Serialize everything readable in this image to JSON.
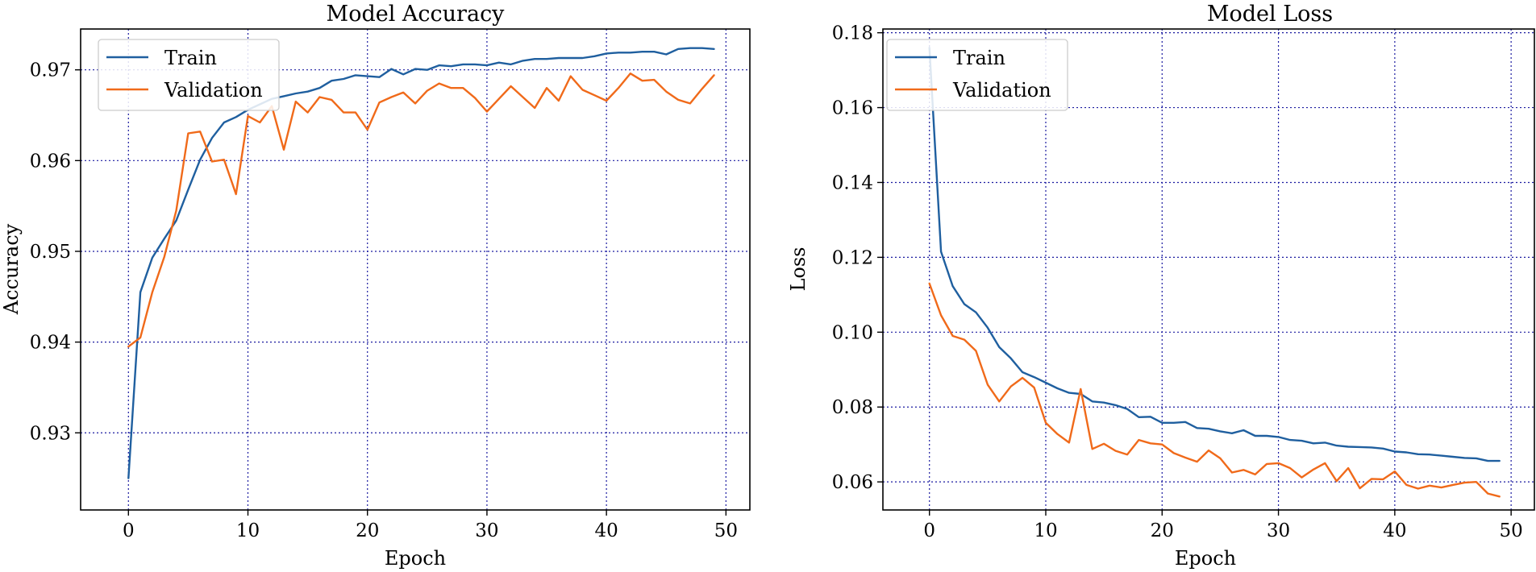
{
  "chart_data": [
    {
      "type": "line",
      "title": "Model Accuracy",
      "xlabel": "Epoch",
      "ylabel": "Accuracy",
      "xlim": [
        -4,
        52
      ],
      "ylim": [
        0.9215,
        0.9745
      ],
      "xticks": [
        0,
        10,
        20,
        30,
        40,
        50
      ],
      "yticks": [
        0.93,
        0.94,
        0.95,
        0.96,
        0.97
      ],
      "ytick_labels": [
        "0.93",
        "0.94",
        "0.95",
        "0.96",
        "0.97"
      ],
      "grid": true,
      "legend_position": "upper-left",
      "x": [
        0,
        1,
        2,
        3,
        4,
        5,
        6,
        7,
        8,
        9,
        10,
        11,
        12,
        13,
        14,
        15,
        16,
        17,
        18,
        19,
        20,
        21,
        22,
        23,
        24,
        25,
        26,
        27,
        28,
        29,
        30,
        31,
        32,
        33,
        34,
        35,
        36,
        37,
        38,
        39,
        40,
        41,
        42,
        43,
        44,
        45,
        46,
        47,
        48,
        49
      ],
      "series": [
        {
          "name": "Train",
          "color": "#1f5f9f",
          "values": [
            0.925,
            0.9455,
            0.9493,
            0.9514,
            0.9534,
            0.9568,
            0.9601,
            0.9625,
            0.9642,
            0.9648,
            0.9656,
            0.9662,
            0.9668,
            0.9671,
            0.9674,
            0.9676,
            0.968,
            0.9688,
            0.969,
            0.9694,
            0.9693,
            0.9692,
            0.9701,
            0.9695,
            0.9701,
            0.97,
            0.9705,
            0.9704,
            0.9706,
            0.9706,
            0.9705,
            0.9708,
            0.9706,
            0.971,
            0.9712,
            0.9712,
            0.9713,
            0.9713,
            0.9713,
            0.9715,
            0.9718,
            0.9719,
            0.9719,
            0.972,
            0.972,
            0.9717,
            0.9723,
            0.9724,
            0.9724,
            0.9723
          ]
        },
        {
          "name": "Validation",
          "color": "#f06a1a",
          "values": [
            0.9395,
            0.9405,
            0.9455,
            0.9494,
            0.9545,
            0.963,
            0.9632,
            0.9599,
            0.9601,
            0.9563,
            0.9649,
            0.9642,
            0.966,
            0.9612,
            0.9665,
            0.9653,
            0.967,
            0.9667,
            0.9653,
            0.9653,
            0.9634,
            0.9664,
            0.967,
            0.9675,
            0.9663,
            0.9677,
            0.9685,
            0.968,
            0.968,
            0.9669,
            0.9654,
            0.9668,
            0.9682,
            0.967,
            0.9658,
            0.968,
            0.9666,
            0.9693,
            0.9678,
            0.9672,
            0.9666,
            0.968,
            0.9696,
            0.9688,
            0.9689,
            0.9676,
            0.9667,
            0.9663,
            0.9679,
            0.9694
          ]
        }
      ]
    },
    {
      "type": "line",
      "title": "Model Loss",
      "xlabel": "Epoch",
      "ylabel": "Loss",
      "xlim": [
        -4,
        52
      ],
      "ylim": [
        0.0525,
        0.181
      ],
      "xticks": [
        0,
        10,
        20,
        30,
        40,
        50
      ],
      "yticks": [
        0.06,
        0.08,
        0.1,
        0.12,
        0.14,
        0.16,
        0.18
      ],
      "ytick_labels": [
        "0.06",
        "0.08",
        "0.10",
        "0.12",
        "0.14",
        "0.16",
        "0.18"
      ],
      "grid": true,
      "legend_position": "upper-left",
      "x": [
        0,
        1,
        2,
        3,
        4,
        5,
        6,
        7,
        8,
        9,
        10,
        11,
        12,
        13,
        14,
        15,
        16,
        17,
        18,
        19,
        20,
        21,
        22,
        23,
        24,
        25,
        26,
        27,
        28,
        29,
        30,
        31,
        32,
        33,
        34,
        35,
        36,
        37,
        38,
        39,
        40,
        41,
        42,
        43,
        44,
        45,
        46,
        47,
        48,
        49
      ],
      "series": [
        {
          "name": "Train",
          "color": "#1f5f9f",
          "values": [
            0.176,
            0.1215,
            0.1123,
            0.1075,
            0.1053,
            0.1012,
            0.096,
            0.093,
            0.0893,
            0.088,
            0.0865,
            0.085,
            0.0838,
            0.0835,
            0.0815,
            0.0812,
            0.0805,
            0.0795,
            0.0773,
            0.0774,
            0.0758,
            0.0758,
            0.076,
            0.0744,
            0.0742,
            0.0735,
            0.073,
            0.0738,
            0.0723,
            0.0723,
            0.072,
            0.0712,
            0.071,
            0.0703,
            0.0705,
            0.0697,
            0.0694,
            0.0693,
            0.0692,
            0.0689,
            0.0681,
            0.0679,
            0.0674,
            0.0673,
            0.067,
            0.0667,
            0.0664,
            0.0663,
            0.0656,
            0.0656
          ]
        },
        {
          "name": "Validation",
          "color": "#f06a1a",
          "values": [
            0.113,
            0.1045,
            0.099,
            0.098,
            0.095,
            0.086,
            0.0815,
            0.0855,
            0.0878,
            0.0852,
            0.0758,
            0.0728,
            0.0705,
            0.0848,
            0.0688,
            0.0702,
            0.0683,
            0.0673,
            0.0712,
            0.0703,
            0.07,
            0.0677,
            0.0665,
            0.0654,
            0.0684,
            0.0663,
            0.0625,
            0.0632,
            0.062,
            0.0648,
            0.065,
            0.0637,
            0.0612,
            0.0633,
            0.065,
            0.0602,
            0.0637,
            0.0583,
            0.0608,
            0.0607,
            0.0628,
            0.0592,
            0.0582,
            0.059,
            0.0585,
            0.0592,
            0.0598,
            0.06,
            0.0569,
            0.0561
          ]
        }
      ]
    }
  ]
}
